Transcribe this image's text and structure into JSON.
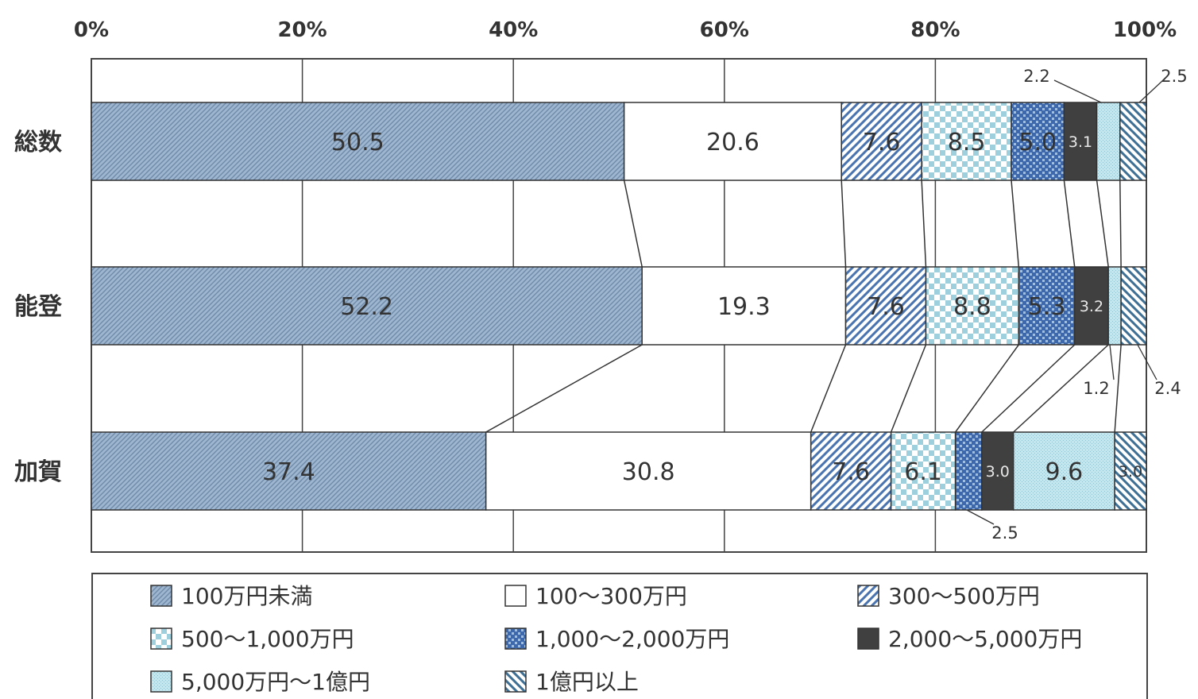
{
  "chart_data": {
    "type": "bar",
    "orientation": "horizontal",
    "stacked": true,
    "percent": true,
    "x_ticks": [
      "0%",
      "20%",
      "40%",
      "60%",
      "80%",
      "100%"
    ],
    "xlim": [
      0,
      100
    ],
    "grid": true,
    "legend_position": "bottom",
    "categories": [
      "総数",
      "能登",
      "加賀"
    ],
    "series": [
      {
        "name": "100万円未満",
        "values": [
          50.5,
          52.2,
          37.4
        ]
      },
      {
        "name": "100～300万円",
        "values": [
          20.6,
          19.3,
          30.8
        ]
      },
      {
        "name": "300～500万円",
        "values": [
          7.6,
          7.6,
          7.6
        ]
      },
      {
        "name": "500～1,000万円",
        "values": [
          8.5,
          8.8,
          6.1
        ]
      },
      {
        "name": "1,000～2,000万円",
        "values": [
          5.0,
          5.3,
          2.5
        ]
      },
      {
        "name": "2,000～5,000万円",
        "values": [
          3.1,
          3.2,
          3.0
        ]
      },
      {
        "name": "5,000万円～1億円",
        "values": [
          2.2,
          1.2,
          9.6
        ]
      },
      {
        "name": "1億円以上",
        "values": [
          2.5,
          2.4,
          3.0
        ]
      }
    ],
    "data_labels": [
      [
        "50.5",
        "20.6",
        "7.6",
        "8.5",
        "5.0",
        "3.1",
        "2.2",
        "2.5"
      ],
      [
        "52.2",
        "19.3",
        "7.6",
        "8.8",
        "5.3",
        "3.2",
        "1.2",
        "2.4"
      ],
      [
        "37.4",
        "30.8",
        "7.6",
        "6.1",
        "2.5",
        "3.0",
        "9.6",
        "3.0"
      ]
    ],
    "legend": [
      "100万円未満",
      "100～300万円",
      "300～500万円",
      "500～1,000万円",
      "1,000～2,000万円",
      "2,000～5,000万円",
      "5,000万円～1億円",
      "1億円以上"
    ]
  }
}
